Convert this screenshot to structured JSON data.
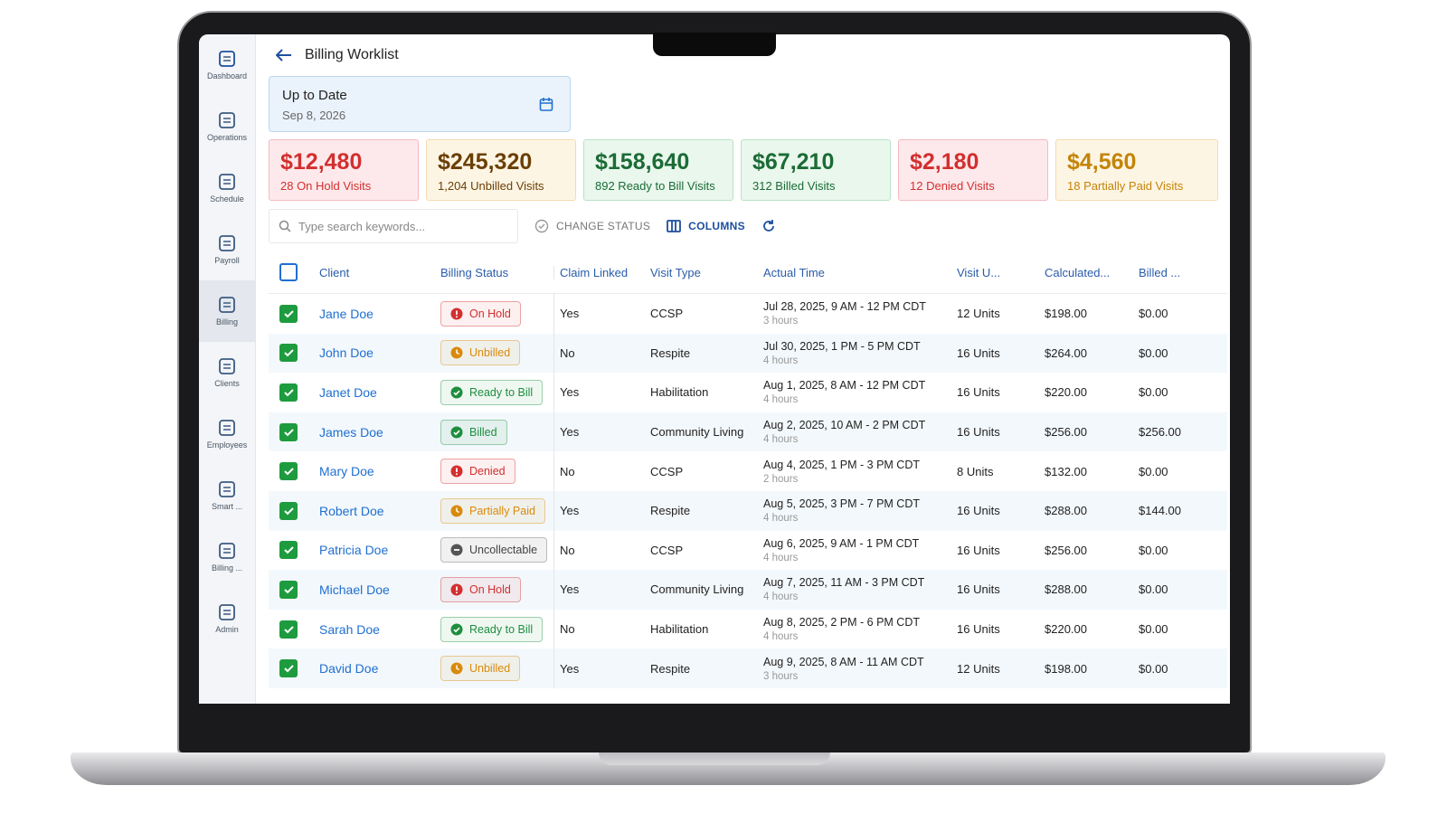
{
  "sidebar": [
    {
      "label": "Dashboard"
    },
    {
      "label": "Operations"
    },
    {
      "label": "Schedule"
    },
    {
      "label": "Payroll"
    },
    {
      "label": "Billing"
    },
    {
      "label": "Clients"
    },
    {
      "label": "Employees"
    },
    {
      "label": "Smart ..."
    },
    {
      "label": "Billing ..."
    },
    {
      "label": "Admin"
    }
  ],
  "header": {
    "title": "Billing Worklist"
  },
  "date_filter": {
    "label": "Up to Date",
    "value": "Sep 8, 2026"
  },
  "summary_cards": [
    {
      "amount": "$12,480",
      "caption": "28 On Hold Visits",
      "color": "#d32f2f",
      "background": "#fde9eb",
      "border": "#f4b9c0"
    },
    {
      "amount": "$245,320",
      "caption": "1,204 Unbilled Visits",
      "color": "#6b3f05",
      "background": "#fdf5e4",
      "border": "#f3dcae"
    },
    {
      "amount": "$158,640",
      "caption": "892 Ready to Bill Visits",
      "color": "#1b6b35",
      "background": "#e9f7ed",
      "border": "#b9e3c5"
    },
    {
      "amount": "$67,210",
      "caption": "312 Billed Visits",
      "color": "#1b6b35",
      "background": "#e9f7ed",
      "border": "#b9e3c5"
    },
    {
      "amount": "$2,180",
      "caption": "12 Denied Visits",
      "color": "#d32f2f",
      "background": "#fde9eb",
      "border": "#f4b9c0"
    },
    {
      "amount": "$4,560",
      "caption": "18 Partially Paid Visits",
      "color": "#c48407",
      "background": "#fdf5e4",
      "border": "#f3dcae"
    }
  ],
  "toolbar": {
    "search_placeholder": "Type search keywords...",
    "change_status": "CHANGE STATUS",
    "columns": "COLUMNS"
  },
  "table": {
    "headers": [
      "Client",
      "Billing Status",
      "Claim Linked",
      "Visit Type",
      "Actual Time",
      "Visit U...",
      "Calculated...",
      "Billed ..."
    ],
    "rows": [
      {
        "client": "Jane Doe",
        "status": "On Hold",
        "status_color": "#d32f2f",
        "claim_linked": "Yes",
        "visit_type": "CCSP",
        "time": "Jul 28, 2025, 9 AM - 12 PM CDT",
        "duration": "3 hours",
        "units": "12 Units",
        "calculated": "$198.00",
        "billed": "$0.00"
      },
      {
        "client": "John Doe",
        "status": "Unbilled",
        "status_color": "#d98a0b",
        "claim_linked": "No",
        "visit_type": "Respite",
        "time": "Jul 30, 2025, 1 PM - 5 PM CDT",
        "duration": "4 hours",
        "units": "16 Units",
        "calculated": "$264.00",
        "billed": "$0.00"
      },
      {
        "client": "Janet Doe",
        "status": "Ready to Bill",
        "status_color": "#1e8e3e",
        "claim_linked": "Yes",
        "visit_type": "Habilitation",
        "time": "Aug 1, 2025, 8 AM - 12 PM CDT",
        "duration": "4 hours",
        "units": "16 Units",
        "calculated": "$220.00",
        "billed": "$0.00"
      },
      {
        "client": "James Doe",
        "status": "Billed",
        "status_color": "#1e8e3e",
        "claim_linked": "Yes",
        "visit_type": "Community Living",
        "time": "Aug 2, 2025, 10 AM - 2 PM CDT",
        "duration": "4 hours",
        "units": "16 Units",
        "calculated": "$256.00",
        "billed": "$256.00"
      },
      {
        "client": "Mary Doe",
        "status": "Denied",
        "status_color": "#d32f2f",
        "claim_linked": "No",
        "visit_type": "CCSP",
        "time": "Aug 4, 2025, 1 PM - 3 PM CDT",
        "duration": "2 hours",
        "units": "8 Units",
        "calculated": "$132.00",
        "billed": "$0.00"
      },
      {
        "client": "Robert Doe",
        "status": "Partially Paid",
        "status_color": "#d98a0b",
        "claim_linked": "Yes",
        "visit_type": "Respite",
        "time": "Aug 5, 2025, 3 PM - 7 PM CDT",
        "duration": "4 hours",
        "units": "16 Units",
        "calculated": "$288.00",
        "billed": "$144.00"
      },
      {
        "client": "Patricia Doe",
        "status": "Uncollectable",
        "status_color": "#555555",
        "claim_linked": "No",
        "visit_type": "CCSP",
        "time": "Aug 6, 2025, 9 AM - 1 PM CDT",
        "duration": "4 hours",
        "units": "16 Units",
        "calculated": "$256.00",
        "billed": "$0.00"
      },
      {
        "client": "Michael Doe",
        "status": "On Hold",
        "status_color": "#d32f2f",
        "claim_linked": "Yes",
        "visit_type": "Community Living",
        "time": "Aug 7, 2025, 11 AM - 3 PM CDT",
        "duration": "4 hours",
        "units": "16 Units",
        "calculated": "$288.00",
        "billed": "$0.00"
      },
      {
        "client": "Sarah Doe",
        "status": "Ready to Bill",
        "status_color": "#1e8e3e",
        "claim_linked": "No",
        "visit_type": "Habilitation",
        "time": "Aug 8, 2025, 2 PM - 6 PM CDT",
        "duration": "4 hours",
        "units": "16 Units",
        "calculated": "$220.00",
        "billed": "$0.00"
      },
      {
        "client": "David Doe",
        "status": "Unbilled",
        "status_color": "#d98a0b",
        "claim_linked": "Yes",
        "visit_type": "Respite",
        "time": "Aug 9, 2025, 8 AM - 11 AM CDT",
        "duration": "3 hours",
        "units": "12 Units",
        "calculated": "$198.00",
        "billed": "$0.00"
      }
    ]
  }
}
